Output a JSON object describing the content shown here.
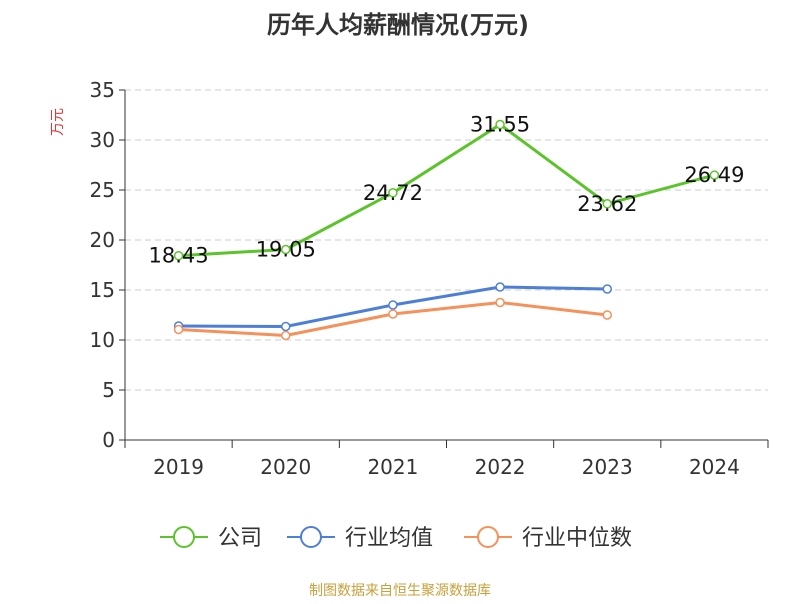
{
  "chart_data": {
    "type": "line",
    "title": "历年人均薪酬情况(万元)",
    "ylabel": "万元",
    "xlabel": "",
    "categories": [
      "2019",
      "2020",
      "2021",
      "2022",
      "2023",
      "2024"
    ],
    "ylim": [
      0,
      35
    ],
    "yticks": [
      0,
      5,
      10,
      15,
      20,
      25,
      30,
      35
    ],
    "grid": true,
    "legend_position": "bottom",
    "series": [
      {
        "name": "公司",
        "color": "#5cc42b",
        "values": [
          18.43,
          19.05,
          24.72,
          31.55,
          23.62,
          26.49
        ],
        "data_labels": [
          "18.43",
          "19.05",
          "24.72",
          "31.55",
          "23.62",
          "26.49"
        ]
      },
      {
        "name": "行业均值",
        "color": "#4e7fd8",
        "values": [
          11.4,
          11.35,
          13.5,
          15.3,
          15.1,
          null
        ]
      },
      {
        "name": "行业中位数",
        "color": "#f5915a",
        "values": [
          11.05,
          10.45,
          12.6,
          13.75,
          12.5,
          null
        ]
      }
    ]
  },
  "footer": {
    "source": "制图数据来自恒生聚源数据库"
  },
  "colors": {
    "axis": "#333333",
    "grid": "#cccccc",
    "ylabel": "#e0373b",
    "footer": "#c8a03c"
  }
}
